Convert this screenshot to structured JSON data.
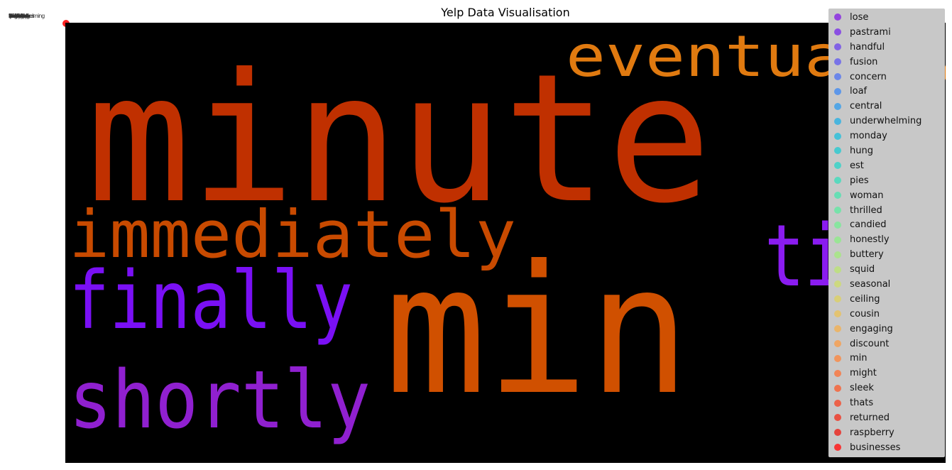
{
  "chart_data": {
    "type": "scatter",
    "title": "Yelp Data Visualisation",
    "xlabel": "",
    "ylabel": "",
    "grid": false,
    "legend_placement": "right",
    "background_image": "word-cloud",
    "wordcloud_words": [
      {
        "text": "minute",
        "color": "#c03000"
      },
      {
        "text": "eventually",
        "color": "#e07a10"
      },
      {
        "text": "immediately",
        "color": "#c84a00"
      },
      {
        "text": "till",
        "color": "#8a1cf0"
      },
      {
        "text": "finally",
        "color": "#7a10f5"
      },
      {
        "text": "min",
        "color": "#d05000"
      },
      {
        "text": "shortly",
        "color": "#9020d0"
      }
    ],
    "series": [
      {
        "name": "lose",
        "color": "#8a2be2"
      },
      {
        "name": "pastrami",
        "color": "#7f3ae6"
      },
      {
        "name": "handful",
        "color": "#7450ea"
      },
      {
        "name": "fusion",
        "color": "#6a64ec"
      },
      {
        "name": "concern",
        "color": "#5a7aee"
      },
      {
        "name": "loaf",
        "color": "#4a8eee"
      },
      {
        "name": "central",
        "color": "#3ea0ea"
      },
      {
        "name": "underwhelming",
        "color": "#32b2e2"
      },
      {
        "name": "monday",
        "color": "#2ec0da"
      },
      {
        "name": "hung",
        "color": "#30cad0"
      },
      {
        "name": "est",
        "color": "#38d4c8"
      },
      {
        "name": "pies",
        "color": "#46dcbc"
      },
      {
        "name": "woman",
        "color": "#56e2b0"
      },
      {
        "name": "thrilled",
        "color": "#68e6a4"
      },
      {
        "name": "candied",
        "color": "#7cea98"
      },
      {
        "name": "honestly",
        "color": "#92ea8c"
      },
      {
        "name": "buttery",
        "color": "#a6e882"
      },
      {
        "name": "squid",
        "color": "#bce27a"
      },
      {
        "name": "seasonal",
        "color": "#cedc72"
      },
      {
        "name": "ceiling",
        "color": "#dcd06a"
      },
      {
        "name": "cousin",
        "color": "#e8c262"
      },
      {
        "name": "engaging",
        "color": "#f0b25a"
      },
      {
        "name": "discount",
        "color": "#f6a052"
      },
      {
        "name": "min",
        "color": "#f88c4a"
      },
      {
        "name": "might",
        "color": "#f87842"
      },
      {
        "name": "sleek",
        "color": "#f6643a"
      },
      {
        "name": "thats",
        "color": "#f25032"
      },
      {
        "name": "returned",
        "color": "#ee3c2a"
      },
      {
        "name": "raspberry",
        "color": "#ea2a22"
      },
      {
        "name": "businesses",
        "color": "#ff1a1a"
      }
    ]
  }
}
